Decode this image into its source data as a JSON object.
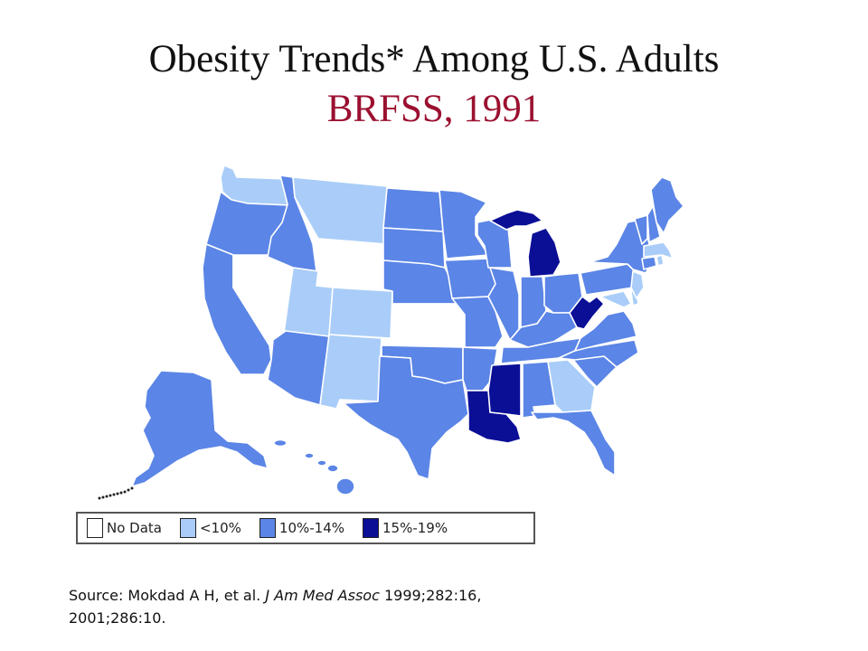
{
  "title": {
    "line1": "Obesity Trends* Among U.S. Adults",
    "line2": "BRFSS, 1991"
  },
  "colors": {
    "no_data": "#ffffff",
    "lt10": "#a9cdf8",
    "p10_14": "#5b85e6",
    "p15_19": "#0b0f96",
    "title_accent": "#9b1030"
  },
  "legend": [
    {
      "key": "no_data",
      "label": "No Data"
    },
    {
      "key": "lt10",
      "label": "<10%"
    },
    {
      "key": "p10_14",
      "label": "10%-14%"
    },
    {
      "key": "p15_19",
      "label": "15%-19%"
    }
  ],
  "map": {
    "states": {
      "WA": "lt10",
      "OR": "p10_14",
      "CA": "p10_14",
      "NV": "no_data",
      "ID": "p10_14",
      "MT": "lt10",
      "WY": "no_data",
      "UT": "lt10",
      "AZ": "p10_14",
      "CO": "lt10",
      "NM": "lt10",
      "ND": "p10_14",
      "SD": "p10_14",
      "NE": "p10_14",
      "KS": "no_data",
      "OK": "p10_14",
      "TX": "p10_14",
      "MN": "p10_14",
      "IA": "p10_14",
      "MO": "p10_14",
      "AR": "p10_14",
      "LA": "p15_19",
      "WI": "p10_14",
      "IL": "p10_14",
      "MI": "p15_19",
      "IN": "p10_14",
      "OH": "p10_14",
      "KY": "p10_14",
      "TN": "p10_14",
      "MS": "p15_19",
      "AL": "p10_14",
      "GA": "lt10",
      "FL": "p10_14",
      "SC": "p10_14",
      "NC": "p10_14",
      "VA": "p10_14",
      "WV": "p15_19",
      "MD": "lt10",
      "DE": "lt10",
      "NJ": "lt10",
      "PA": "p10_14",
      "NY": "p10_14",
      "CT": "p10_14",
      "RI": "lt10",
      "MA": "lt10",
      "VT": "p10_14",
      "NH": "p10_14",
      "ME": "p10_14",
      "AK": "p10_14",
      "HI": "p10_14"
    }
  },
  "source": {
    "prefix": "Source: Mokdad A H, et al. ",
    "journal": "J Am Med Assoc",
    "suffix": " 1999;282:16,",
    "line2": "2001;286:10."
  }
}
